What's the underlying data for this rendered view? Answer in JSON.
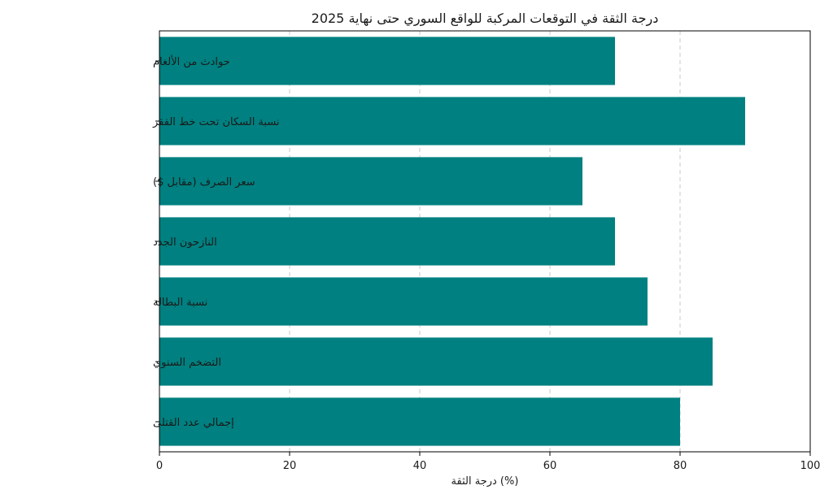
{
  "chart_data": {
    "type": "bar",
    "orientation": "horizontal",
    "title": "درجة الثقة في التوقعات المركبة للواقع السوري حتى نهاية 2025",
    "xlabel": "درجة الثقة (%)",
    "ylabel": "",
    "xlim": [
      0,
      100
    ],
    "xticks": [
      "0",
      "20",
      "40",
      "60",
      "80",
      "100"
    ],
    "grid": "x-dashed",
    "categories": [
      "حوادث من الألغام",
      "نسبة السكان تحت خط الفقر",
      "سعر الصرف (مقابل $)",
      "النازحون الجدد",
      "نسبة البطالة",
      "التضخم السنوي",
      "إجمالي عدد القتلى"
    ],
    "values": [
      70,
      90,
      65,
      70,
      75,
      85,
      80
    ],
    "bar_color": "#008080"
  }
}
